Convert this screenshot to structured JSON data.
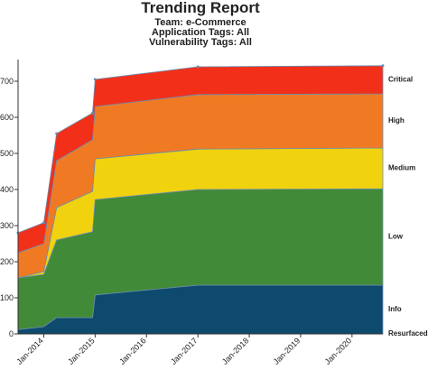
{
  "chart_data": {
    "type": "stacked-area",
    "title": "Trending Report",
    "subtitle": [
      "Team: e-Commerce",
      "Application Tags: All",
      "Vulnerability Tags: All"
    ],
    "x": [
      2013.5,
      2014.0,
      2014.25,
      2014.95,
      2015.0,
      2017.0,
      2020.6
    ],
    "xlim": [
      2013.5,
      2020.6
    ],
    "xticks": [
      {
        "value": 2014,
        "label": "Jan-2014"
      },
      {
        "value": 2015,
        "label": "Jan-2015"
      },
      {
        "value": 2016,
        "label": "Jan-2016"
      },
      {
        "value": 2017,
        "label": "Jan-2017"
      },
      {
        "value": 2018,
        "label": "Jan-2018"
      },
      {
        "value": 2019,
        "label": "Jan-2019"
      },
      {
        "value": 2020,
        "label": "Jan-2020"
      }
    ],
    "ylim": [
      0,
      760
    ],
    "yticks": [
      0,
      100,
      200,
      300,
      400,
      500,
      600,
      700
    ],
    "series": [
      {
        "name": "Resurfaced",
        "color": "#f07a24",
        "values": [
          0,
          0,
          0,
          0,
          0,
          0,
          0
        ]
      },
      {
        "name": "Info",
        "color": "#0d4a6e",
        "values": [
          12,
          20,
          45,
          45,
          108,
          135,
          135
        ]
      },
      {
        "name": "Low",
        "color": "#418a37",
        "values": [
          143,
          145,
          215,
          238,
          264,
          265,
          267
        ]
      },
      {
        "name": "Medium",
        "color": "#f0d20f",
        "values": [
          0,
          8,
          90,
          112,
          113,
          112,
          113
        ]
      },
      {
        "name": "High",
        "color": "#f07a24",
        "values": [
          70,
          77,
          130,
          143,
          145,
          151,
          150
        ]
      },
      {
        "name": "Critical",
        "color": "#f2301a",
        "values": [
          55,
          58,
          75,
          74,
          75,
          77,
          78
        ]
      }
    ]
  }
}
